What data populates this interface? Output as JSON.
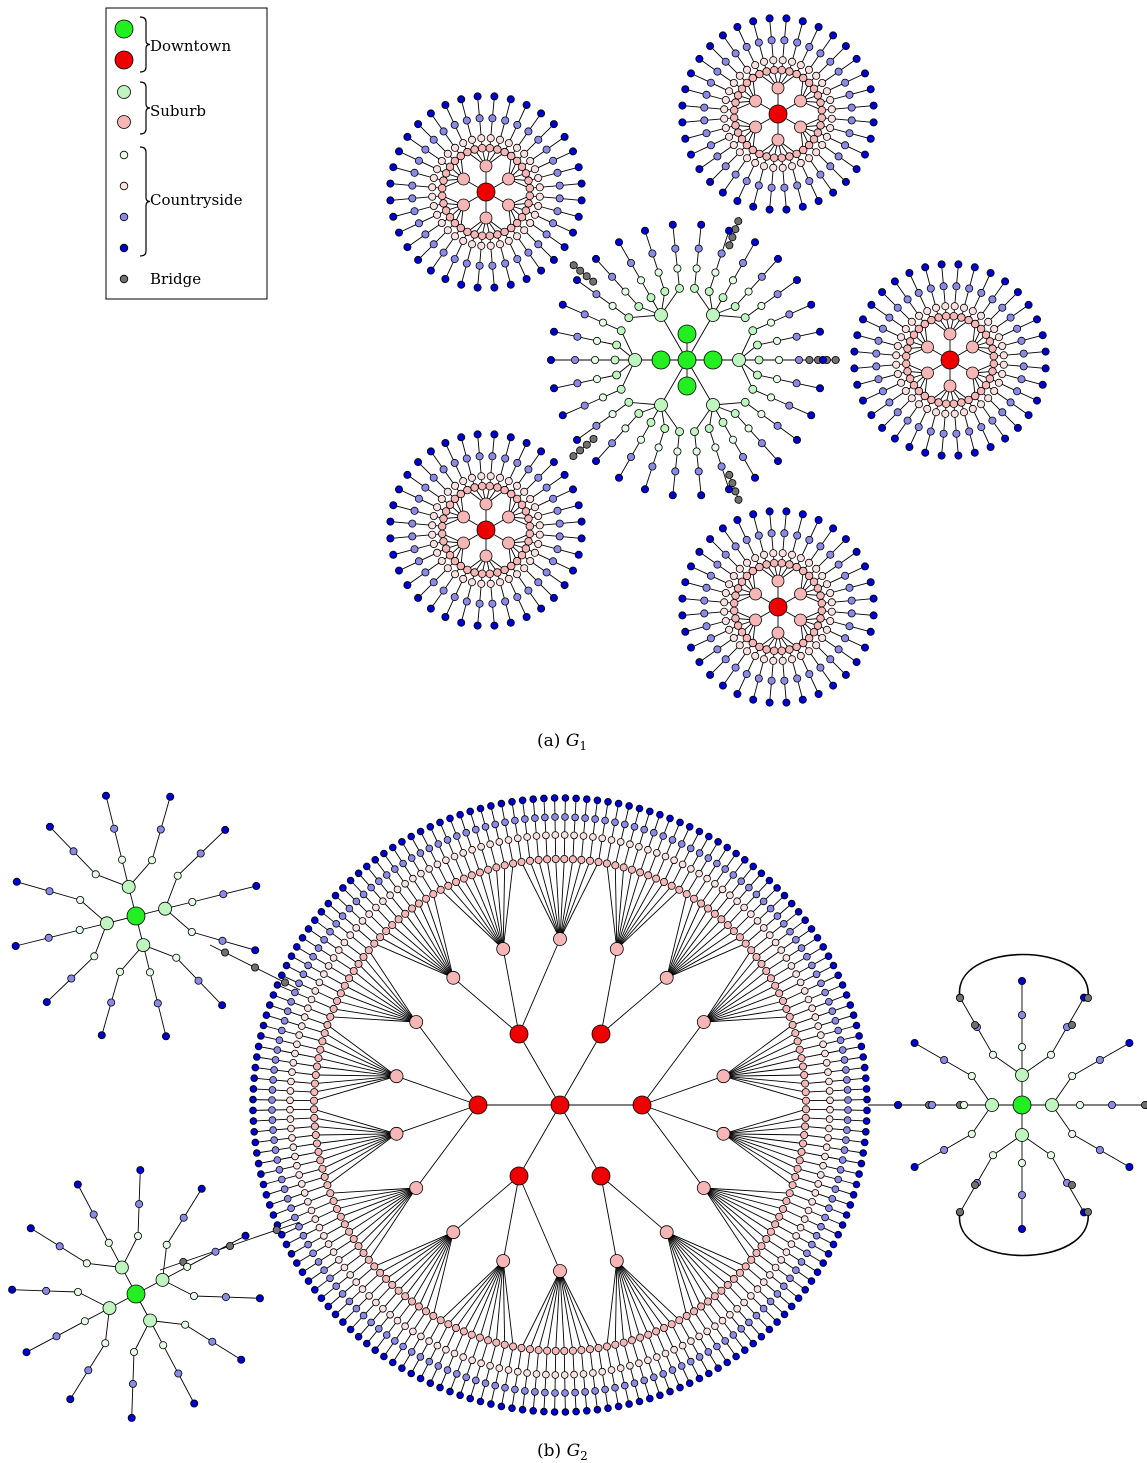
{
  "figure": {
    "captions": [
      {
        "prefix": "(a) ",
        "symbol": "G",
        "subscript": "1"
      },
      {
        "prefix": "(b) ",
        "symbol": "G",
        "subscript": "2"
      }
    ]
  },
  "legend": {
    "groups": [
      "Downtown",
      "Suburb",
      "Countryside"
    ],
    "bridge_label": "Bridge"
  },
  "colors": {
    "downtown_green": "#22ee22",
    "downtown_red": "#ee0000",
    "suburb_green": "#bff5bf",
    "suburb_pink": "#f6b6b6",
    "countryside_pale_green": "#e6fbe6",
    "countryside_pale_pink": "#fbe0e0",
    "countryside_periwinkle": "#8a8ae6",
    "countryside_blue": "#0000cc",
    "bridge_gray": "#707070",
    "edge": "#000000"
  },
  "graphs": [
    {
      "id": "G1",
      "description_free": true,
      "hub_count_green": 4,
      "red_clusters": 5,
      "spokes_per_red_cluster": 36
    },
    {
      "id": "G2",
      "red_downtown_nodes": 7,
      "outer_spokes": 180,
      "green_clusters": 3
    }
  ]
}
